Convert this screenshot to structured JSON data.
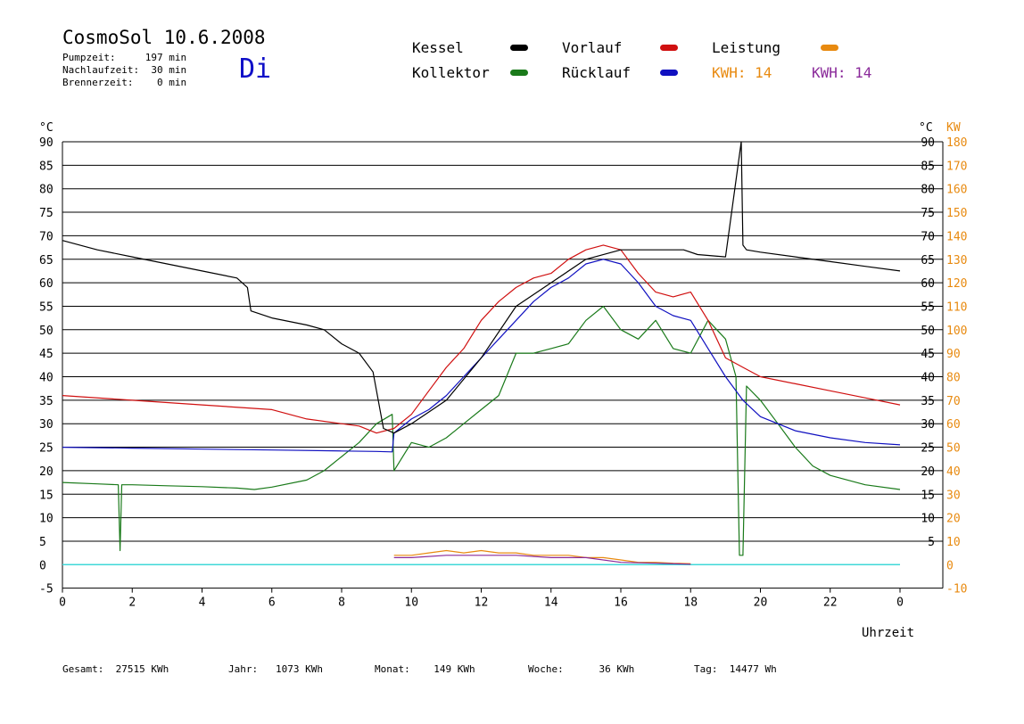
{
  "header": {
    "title": "CosmoSol 10.6.2008",
    "weekday": "Di",
    "pump_time": "Pumpzeit:     197 min",
    "after_run_time": "Nachlaufzeit:  30 min",
    "burner_time": "Brennerzeit:    0 min"
  },
  "legend": {
    "kessel": "Kessel",
    "kollektor": "Kollektor",
    "vorlauf": "Vorlauf",
    "ruecklauf": "Rücklauf",
    "leistung": "Leistung",
    "kwh_orange": "KWH: 14",
    "kwh_purple": "KWH: 14"
  },
  "colors": {
    "kessel": "#000000",
    "kollektor": "#1a7a1a",
    "vorlauf": "#d01010",
    "ruecklauf": "#1010c0",
    "leistung": "#e88a10",
    "kwh_purple": "#8a2a9a",
    "baseline": "#40d8d8",
    "weekday": "#1010c8"
  },
  "footer": {
    "gesamt": "Gesamt:  27515 KWh",
    "jahr": "Jahr:   1073 KWh",
    "monat": "Monat:    149 KWh",
    "woche": "Woche:      36 KWh",
    "tag": "Tag:  14477 Wh"
  },
  "chart_data": {
    "type": "line",
    "xlabel": "Uhrzeit",
    "ylabel_left": "°C",
    "ylabel_right": "°C",
    "ylabel_power": "KW",
    "xlim": [
      0,
      24
    ],
    "ylim": [
      -5,
      90
    ],
    "x_ticks": [
      "0",
      "2",
      "4",
      "6",
      "8",
      "10",
      "12",
      "14",
      "16",
      "18",
      "20",
      "22",
      "0"
    ],
    "y_ticks": [
      "-5",
      "0",
      "5",
      "10",
      "15",
      "20",
      "25",
      "30",
      "35",
      "40",
      "45",
      "50",
      "55",
      "60",
      "65",
      "70",
      "75",
      "80",
      "85",
      "90"
    ],
    "right_y_ticks": [
      "5",
      "10",
      "15",
      "20",
      "25",
      "30",
      "35",
      "40",
      "45",
      "50",
      "55",
      "60",
      "65",
      "70",
      "75",
      "80",
      "85",
      "90"
    ],
    "power_ticks": [
      "-10",
      "0",
      "10",
      "20",
      "30",
      "40",
      "50",
      "60",
      "70",
      "80",
      "90",
      "100",
      "110",
      "120",
      "130",
      "140",
      "150",
      "160",
      "170",
      "180"
    ],
    "grid": true,
    "series": [
      {
        "name": "Kessel",
        "x": [
          0,
          1,
          2,
          3,
          4,
          5,
          5.3,
          5.4,
          6,
          7,
          7.5,
          8,
          8.5,
          8.9,
          9.2,
          9.5,
          10,
          11,
          12,
          13,
          14,
          15,
          16,
          17,
          17.8,
          18.2,
          19,
          19.45,
          19.5,
          19.6,
          20,
          21,
          22,
          23,
          24
        ],
        "y": [
          69,
          67,
          65.5,
          64,
          62.5,
          61,
          59,
          54,
          52.5,
          51,
          50,
          47,
          45,
          41,
          29,
          28,
          30,
          35,
          44,
          55,
          60,
          65,
          67,
          67,
          67,
          66,
          65.5,
          90,
          68,
          67,
          66.5,
          65.5,
          64.5,
          63.5,
          62.5
        ]
      },
      {
        "name": "Kollektor",
        "x": [
          0,
          1,
          1.6,
          1.65,
          1.7,
          2,
          3,
          4,
          5,
          5.5,
          6,
          7,
          7.5,
          8,
          8.5,
          9,
          9.45,
          9.5,
          10,
          10.5,
          11,
          11.5,
          12,
          12.5,
          13,
          13.5,
          14,
          14.5,
          15,
          15.5,
          16,
          16.5,
          17,
          17.5,
          18,
          18.5,
          19,
          19.3,
          19.4,
          19.5,
          19.6,
          20,
          20.5,
          21,
          21.5,
          22,
          22.5,
          23,
          24
        ],
        "y": [
          17.5,
          17.2,
          17,
          3,
          17,
          17,
          16.8,
          16.6,
          16.3,
          16,
          16.5,
          18,
          20,
          23,
          26,
          30,
          32,
          20,
          26,
          25,
          27,
          30,
          33,
          36,
          45,
          45,
          46,
          47,
          52,
          55,
          50,
          48,
          52,
          46,
          45,
          52,
          48,
          40,
          2,
          2,
          38,
          35,
          30,
          25,
          21,
          19,
          18,
          17,
          16
        ]
      },
      {
        "name": "Vorlauf",
        "x": [
          0,
          2,
          4,
          6,
          7,
          8,
          8.5,
          9,
          9.5,
          10,
          10.5,
          11,
          11.5,
          12,
          12.5,
          13,
          13.5,
          14,
          14.5,
          15,
          15.5,
          16,
          16.5,
          17,
          17.5,
          18,
          18.5,
          19,
          19.5,
          20,
          21,
          22,
          23,
          24
        ],
        "y": [
          36,
          35,
          34,
          33,
          31,
          30,
          29.5,
          28,
          29,
          32,
          37,
          42,
          46,
          52,
          56,
          59,
          61,
          62,
          65,
          67,
          68,
          67,
          62,
          58,
          57,
          58,
          52,
          44,
          42,
          40,
          38.5,
          37,
          35.5,
          34
        ]
      },
      {
        "name": "Rücklauf",
        "x": [
          0,
          2,
          4,
          6,
          8,
          9,
          9.45,
          9.5,
          10,
          10.5,
          11,
          11.5,
          12,
          12.5,
          13,
          13.5,
          14,
          14.5,
          15,
          15.5,
          16,
          16.5,
          17,
          17.5,
          18,
          18.5,
          19,
          19.5,
          20,
          21,
          22,
          23,
          24
        ],
        "y": [
          25,
          24.8,
          24.6,
          24.4,
          24.2,
          24.1,
          24,
          28,
          31,
          33,
          36,
          40,
          44,
          48,
          52,
          56,
          59,
          61,
          64,
          65,
          64,
          60,
          55,
          53,
          52,
          46,
          40,
          35,
          31.5,
          28.5,
          27,
          26,
          25.5
        ]
      },
      {
        "name": "Leistung",
        "x": [
          9.5,
          10,
          10.5,
          11,
          11.5,
          12,
          12.5,
          13,
          13.5,
          14,
          14.5,
          15,
          15.5,
          16,
          16.5,
          17,
          17.5,
          18
        ],
        "y": [
          2,
          2,
          2.5,
          3,
          2.5,
          3,
          2.5,
          2.5,
          2,
          2,
          2,
          1.5,
          1.5,
          1,
          0.5,
          0.5,
          0.3,
          0.2
        ]
      },
      {
        "name": "KWH",
        "x": [
          9.5,
          10,
          11,
          12,
          13,
          14,
          15,
          16,
          17,
          18
        ],
        "y": [
          1.5,
          1.5,
          2,
          2,
          2,
          1.5,
          1.5,
          0.5,
          0.3,
          0.1
        ]
      }
    ]
  }
}
